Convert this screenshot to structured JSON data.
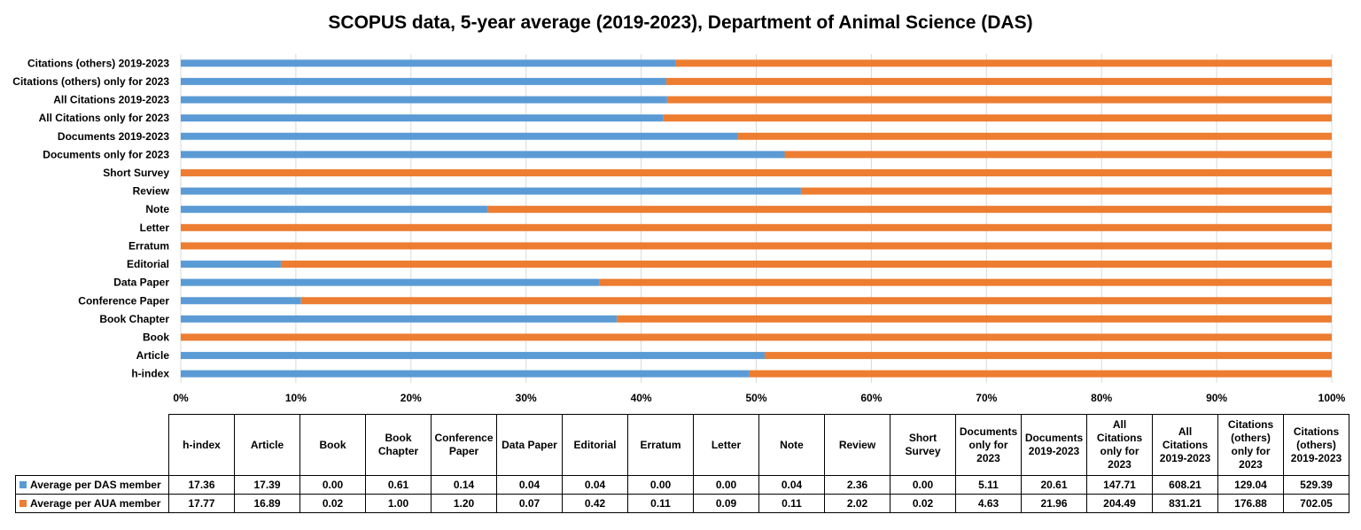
{
  "chart_data": {
    "type": "bar",
    "orientation": "horizontal",
    "stacking": "percent",
    "title": "SCOPUS data, 5-year average (2019-2023), Department of Animal Science (DAS)",
    "categories": [
      "h-index",
      "Article",
      "Book",
      "Book Chapter",
      "Conference Paper",
      "Data Paper",
      "Editorial",
      "Erratum",
      "Letter",
      "Note",
      "Review",
      "Short Survey",
      "Documents only for 2023",
      "Documents 2019-2023",
      "All Citations only for 2023",
      "All Citations 2019-2023",
      "Citations (others) only for 2023",
      "Citations (others) 2019-2023"
    ],
    "table_headers": [
      "h-index",
      "Article",
      "Book",
      "Book Chapter",
      "Conference Paper",
      "Data Paper",
      "Editorial",
      "Erratum",
      "Letter",
      "Note",
      "Review",
      "Short Survey",
      "Documents only for 2023",
      "Documents 2019-2023",
      "All Citations only for 2023",
      "All Citations 2019-2023",
      "Citations (others) only for 2023",
      "Citations (others) 2019-2023"
    ],
    "series": [
      {
        "name": "Average per DAS member",
        "color": "#5b9bd5",
        "values": [
          "17.36",
          "17.39",
          "0.00",
          "0.61",
          "0.14",
          "0.04",
          "0.04",
          "0.00",
          "0.00",
          "0.04",
          "2.36",
          "0.00",
          "5.11",
          "20.61",
          "147.71",
          "608.21",
          "129.04",
          "529.39"
        ]
      },
      {
        "name": "Average per AUA member",
        "color": "#ed7d31",
        "values": [
          "17.77",
          "16.89",
          "0.02",
          "1.00",
          "1.20",
          "0.07",
          "0.42",
          "0.11",
          "0.09",
          "0.11",
          "2.02",
          "0.02",
          "4.63",
          "21.96",
          "204.49",
          "831.21",
          "176.88",
          "702.05"
        ]
      }
    ],
    "x_ticks": [
      "0%",
      "10%",
      "20%",
      "30%",
      "40%",
      "50%",
      "60%",
      "70%",
      "80%",
      "90%",
      "100%"
    ],
    "xlim": [
      0,
      100
    ],
    "grid": true,
    "legend": "data-table"
  }
}
